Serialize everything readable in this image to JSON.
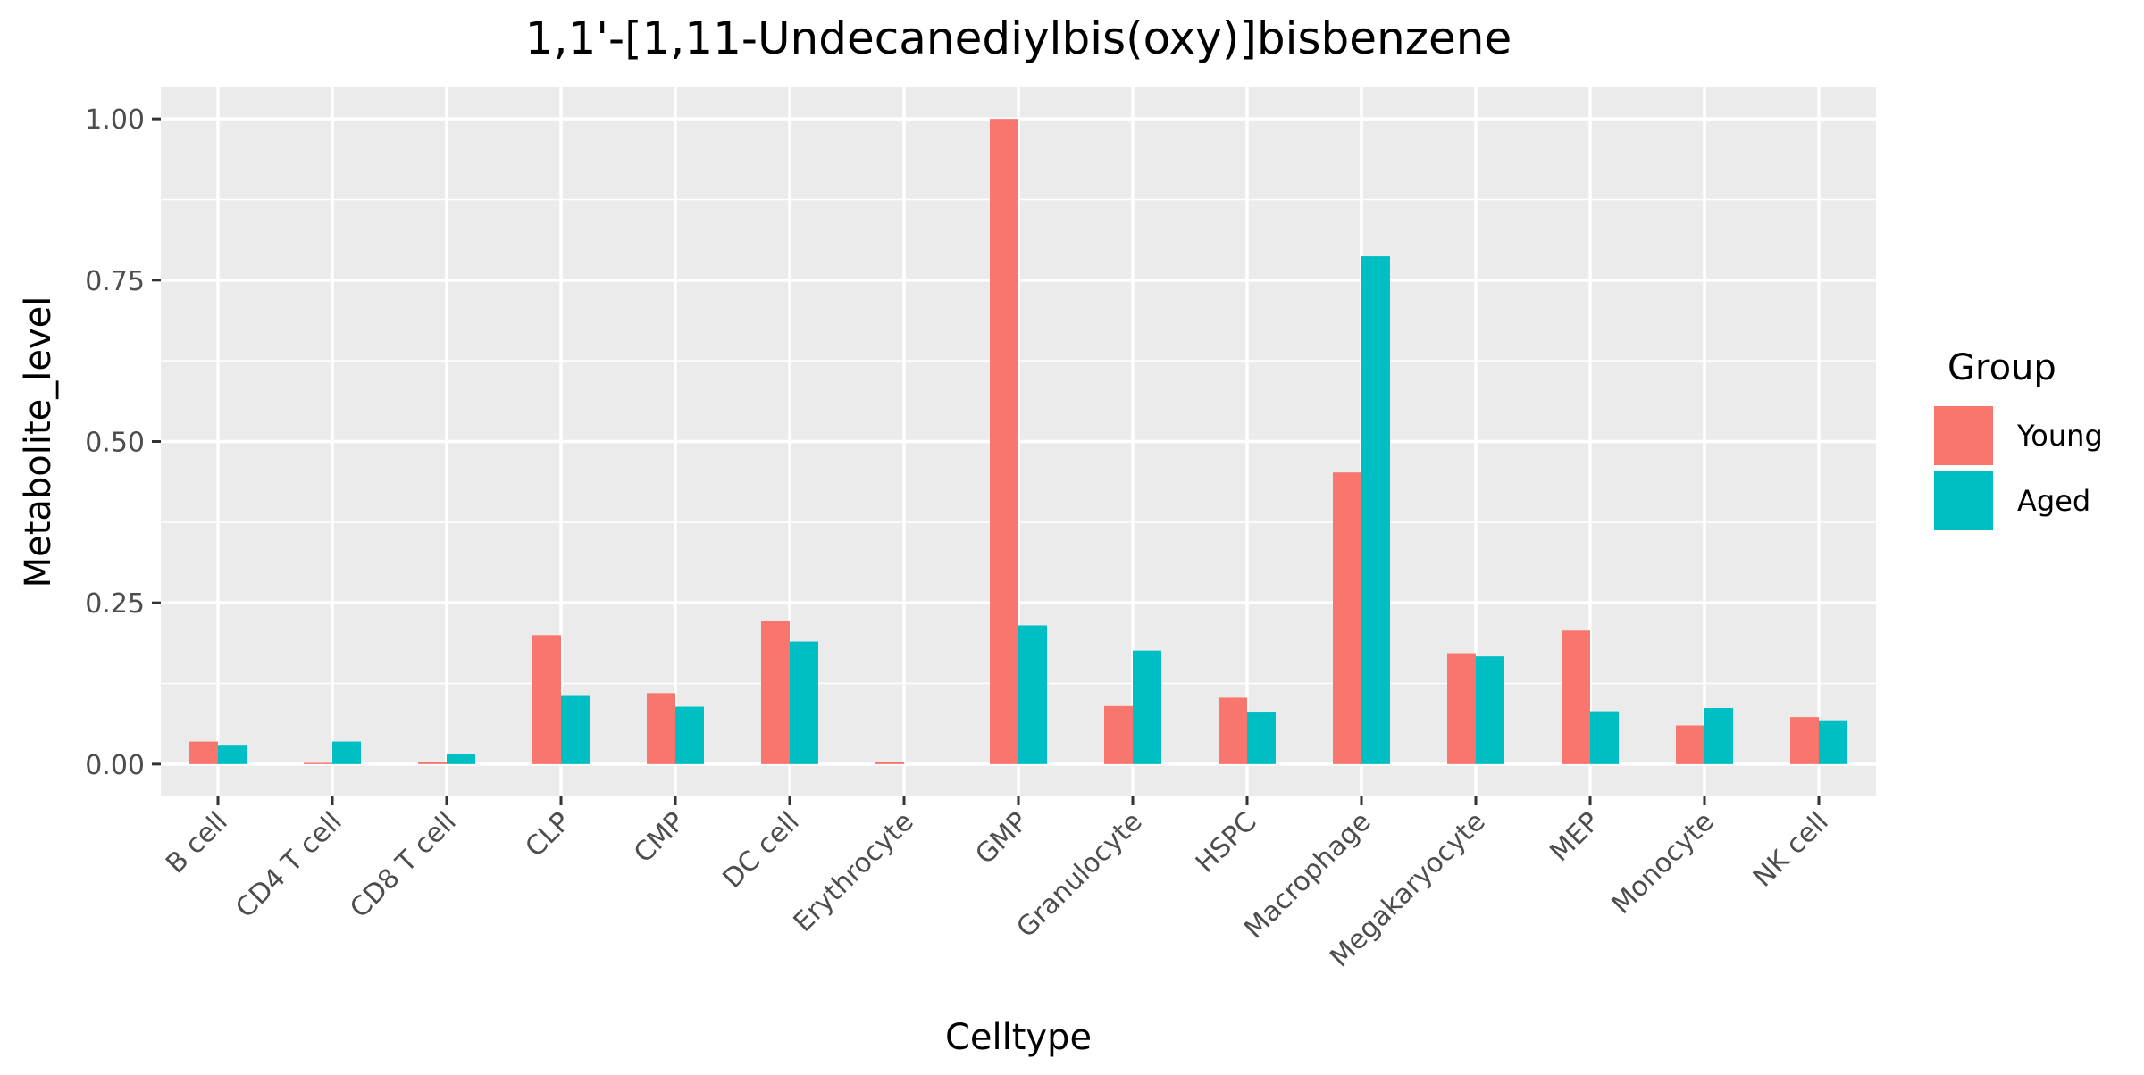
{
  "chart_data": {
    "type": "bar",
    "title": "1,1'-[1,11-Undecanediylbis(oxy)]bisbenzene",
    "xlabel": "Celltype",
    "ylabel": "Metabolite_level",
    "ylim": [
      -0.05,
      1.05
    ],
    "yticks": [
      0.0,
      0.25,
      0.5,
      0.75,
      1.0
    ],
    "ytick_labels": [
      "0.00",
      "0.25",
      "0.50",
      "0.75",
      "1.00"
    ],
    "grid": true,
    "legend": {
      "title": "Group",
      "position": "right"
    },
    "categories": [
      "B cell",
      "CD4 T cell",
      "CD8 T cell",
      "CLP",
      "CMP",
      "DC cell",
      "Erythrocyte",
      "GMP",
      "Granulocyte",
      "HSPC",
      "Macrophage",
      "Megakaryocyte",
      "MEP",
      "Monocyte",
      "NK cell"
    ],
    "series": [
      {
        "name": "Young",
        "color": "#F8766D",
        "values": [
          0.035,
          0.002,
          0.003,
          0.2,
          0.11,
          0.222,
          0.004,
          1.0,
          0.09,
          0.103,
          0.452,
          0.172,
          0.207,
          0.06,
          0.073
        ]
      },
      {
        "name": "Aged",
        "color": "#00BFC4",
        "values": [
          0.03,
          0.035,
          0.015,
          0.107,
          0.089,
          0.19,
          0.0,
          0.215,
          0.176,
          0.08,
          0.787,
          0.167,
          0.082,
          0.087,
          0.068
        ]
      }
    ]
  }
}
